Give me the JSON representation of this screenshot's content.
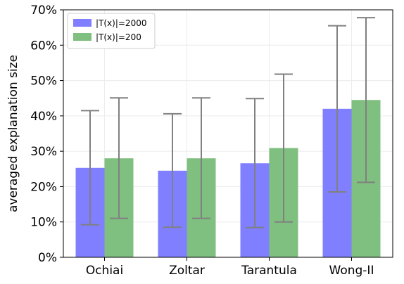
{
  "chart_data": {
    "type": "bar",
    "title": "",
    "xlabel": "",
    "ylabel": "averaged explanation size",
    "categories": [
      "Ochiai",
      "Zoltar",
      "Tarantula",
      "Wong-II"
    ],
    "ylim": [
      0,
      70
    ],
    "yticks": [
      0,
      10,
      20,
      30,
      40,
      50,
      60,
      70
    ],
    "ytick_format": "{v}%",
    "grid": true,
    "legend_position": "top-left",
    "series": [
      {
        "name": "|T(x)|=2000",
        "color": "#7f7fff",
        "values": [
          25.3,
          24.5,
          26.6,
          42.0
        ],
        "err_low": [
          9.2,
          8.5,
          8.4,
          18.5
        ],
        "err_high": [
          41.5,
          40.6,
          44.9,
          65.5
        ]
      },
      {
        "name": "|T(x)|=200",
        "color": "#7fbf7f",
        "values": [
          28.0,
          28.0,
          30.9,
          44.5
        ],
        "err_low": [
          11.0,
          11.0,
          10.0,
          21.2
        ],
        "err_high": [
          45.1,
          45.1,
          51.8,
          67.8
        ]
      }
    ],
    "error_bar_color": "#808080"
  }
}
